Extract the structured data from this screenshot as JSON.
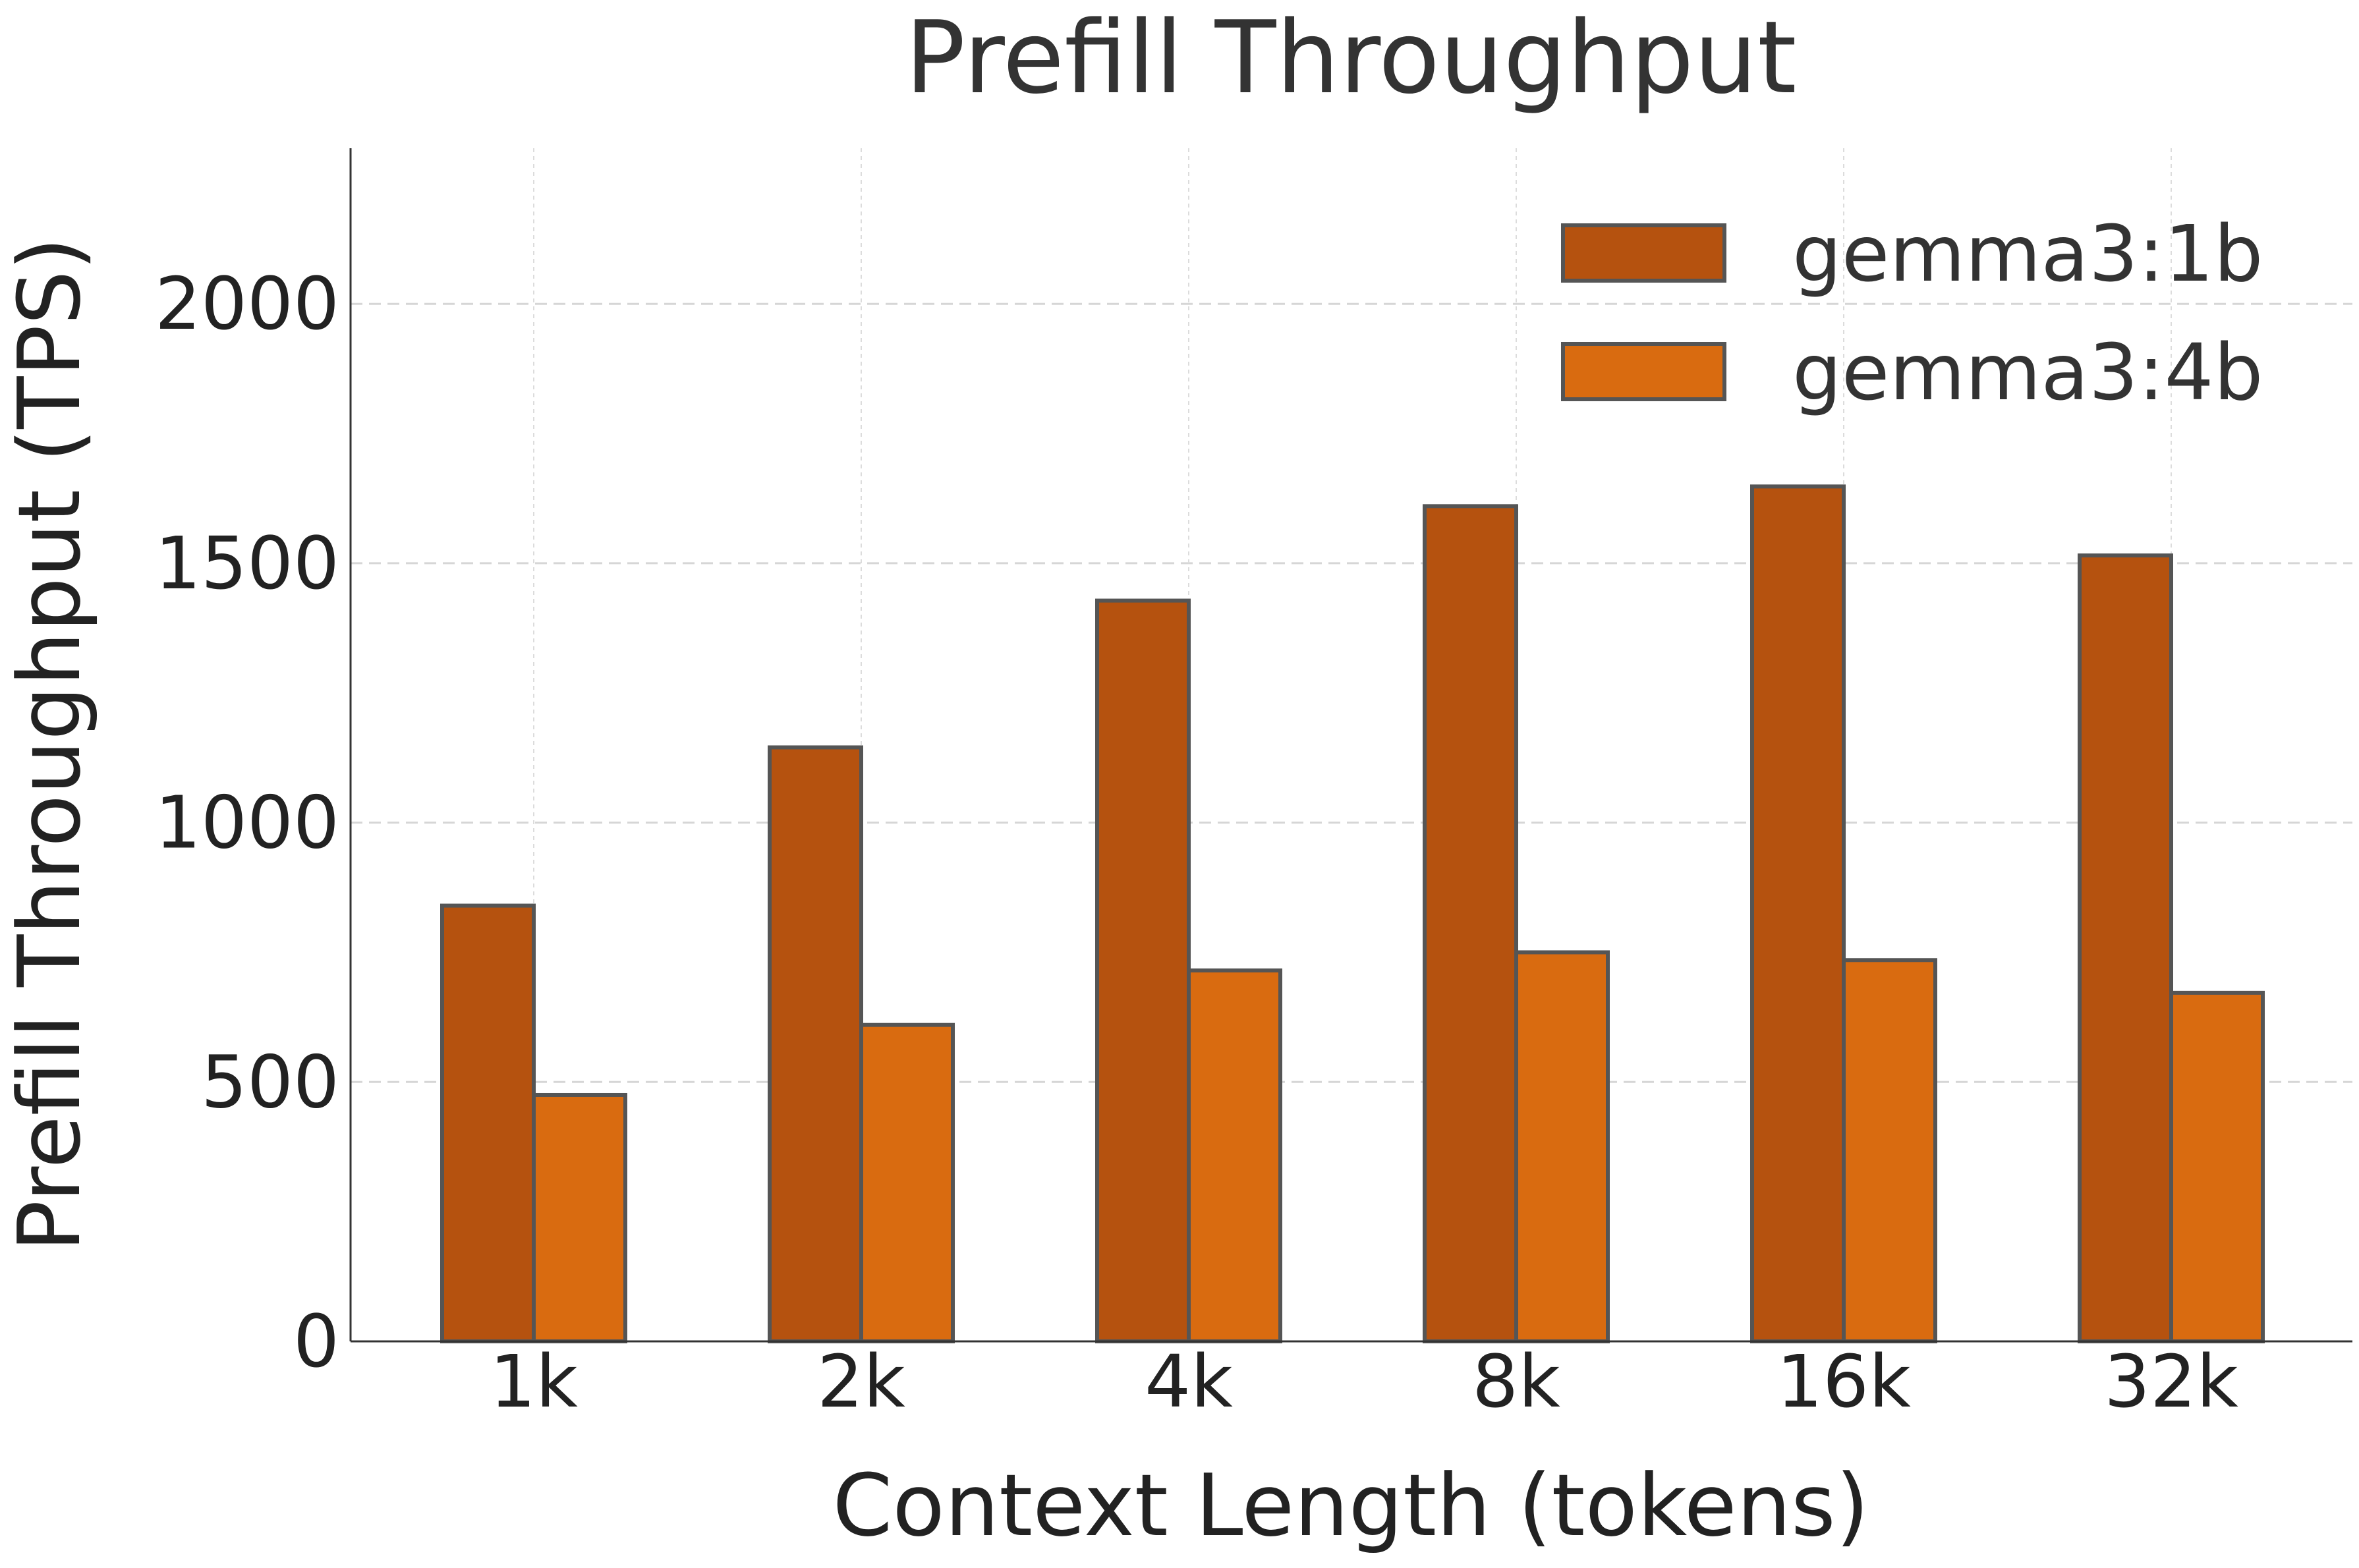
{
  "chart_data": {
    "type": "bar",
    "title": "Prefill Throughput",
    "xlabel": "Context Length (tokens)",
    "ylabel": "Prefill Throughput (TPS)",
    "categories": [
      "1k",
      "2k",
      "4k",
      "8k",
      "16k",
      "32k"
    ],
    "series": [
      {
        "name": "gemma3:1b",
        "color": "#B5520F",
        "values": [
          840,
          1145,
          1428,
          1610,
          1648,
          1515
        ]
      },
      {
        "name": "gemma3:4b",
        "color": "#D96B10",
        "values": [
          475,
          610,
          715,
          750,
          735,
          672
        ]
      }
    ],
    "ylim": [
      0,
      2300
    ],
    "yticks": [
      0,
      500,
      1000,
      1500,
      2000
    ],
    "grid": true,
    "legend": "top-right"
  }
}
